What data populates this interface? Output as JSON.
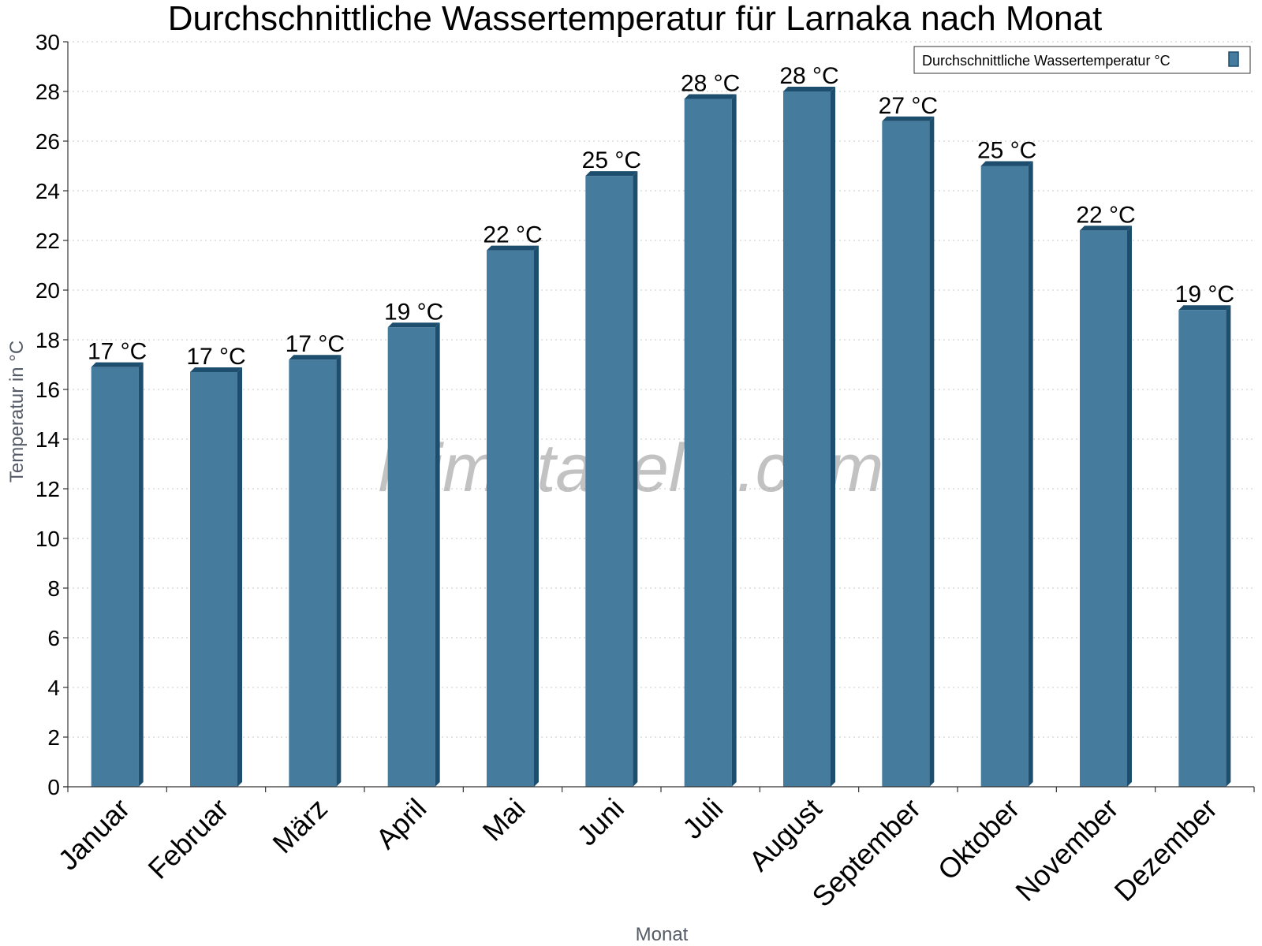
{
  "chart_data": {
    "type": "bar",
    "title": "Durchschnittliche Wassertemperatur für Larnaka nach Monat",
    "xlabel": "Monat",
    "ylabel": "Temperatur in °C",
    "categories": [
      "Januar",
      "Februar",
      "März",
      "April",
      "Mai",
      "Juni",
      "Juli",
      "August",
      "September",
      "Oktober",
      "November",
      "Dezember"
    ],
    "series": [
      {
        "name": "Durchschnittliche Wassertemperatur °C",
        "values": [
          16.9,
          16.7,
          17.2,
          18.5,
          21.6,
          24.6,
          27.7,
          28.0,
          26.8,
          25.0,
          22.4,
          19.2
        ],
        "labels": [
          "17 °C",
          "17 °C",
          "17 °C",
          "19 °C",
          "22 °C",
          "25 °C",
          "28 °C",
          "28 °C",
          "27 °C",
          "25 °C",
          "22 °C",
          "19 °C"
        ],
        "color": "#457b9d",
        "edge_color": "#1d4e6e"
      }
    ],
    "ylim": [
      0,
      30
    ],
    "yticks": [
      "0",
      "2",
      "4",
      "6",
      "8",
      "10",
      "12",
      "14",
      "16",
      "18",
      "20",
      "22",
      "24",
      "26",
      "28",
      "30"
    ],
    "grid": true,
    "legend_position": "top-right"
  },
  "watermark": "klimatabelle.com"
}
